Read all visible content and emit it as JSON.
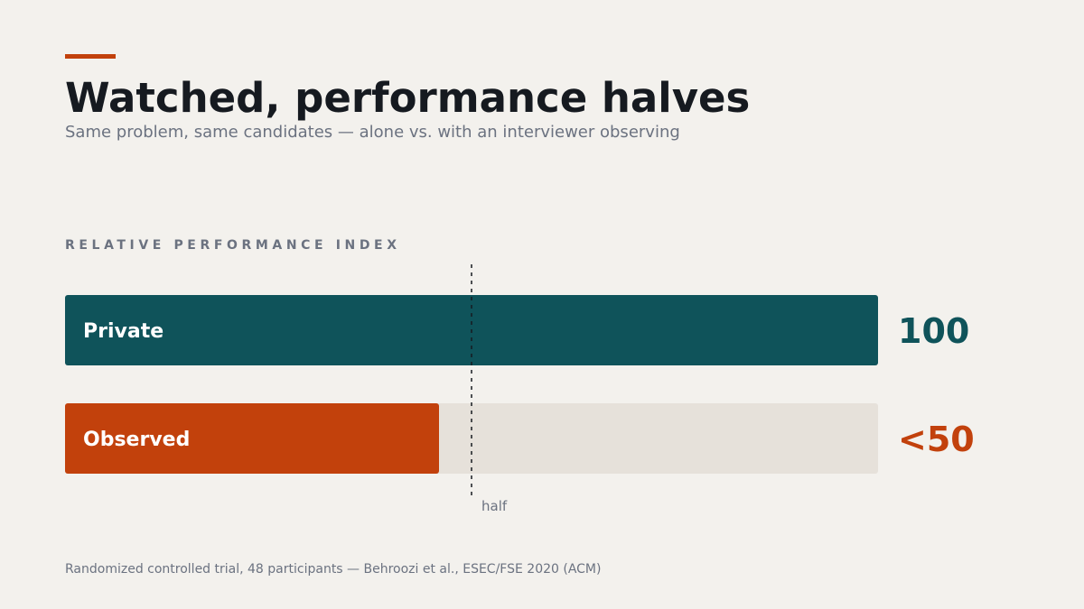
{
  "chart_data": {
    "type": "bar",
    "orientation": "horizontal",
    "title": "Watched, performance halves",
    "subtitle": "Same problem, same candidates — alone vs. with an interviewer observing",
    "axis_label": "RELATIVE PERFORMANCE INDEX",
    "categories": [
      "Private",
      "Observed"
    ],
    "values": [
      100,
      46
    ],
    "value_labels": [
      "100",
      "<50"
    ],
    "colors": [
      "#0f535a",
      "#c2410c"
    ],
    "track_color": "#e6e1da",
    "xlim": [
      0,
      100
    ],
    "annotation": {
      "value": 50,
      "label": "half"
    },
    "source": "Randomized controlled trial, 48 participants — Behroozi et al., ESEC/FSE 2020 (ACM)"
  }
}
